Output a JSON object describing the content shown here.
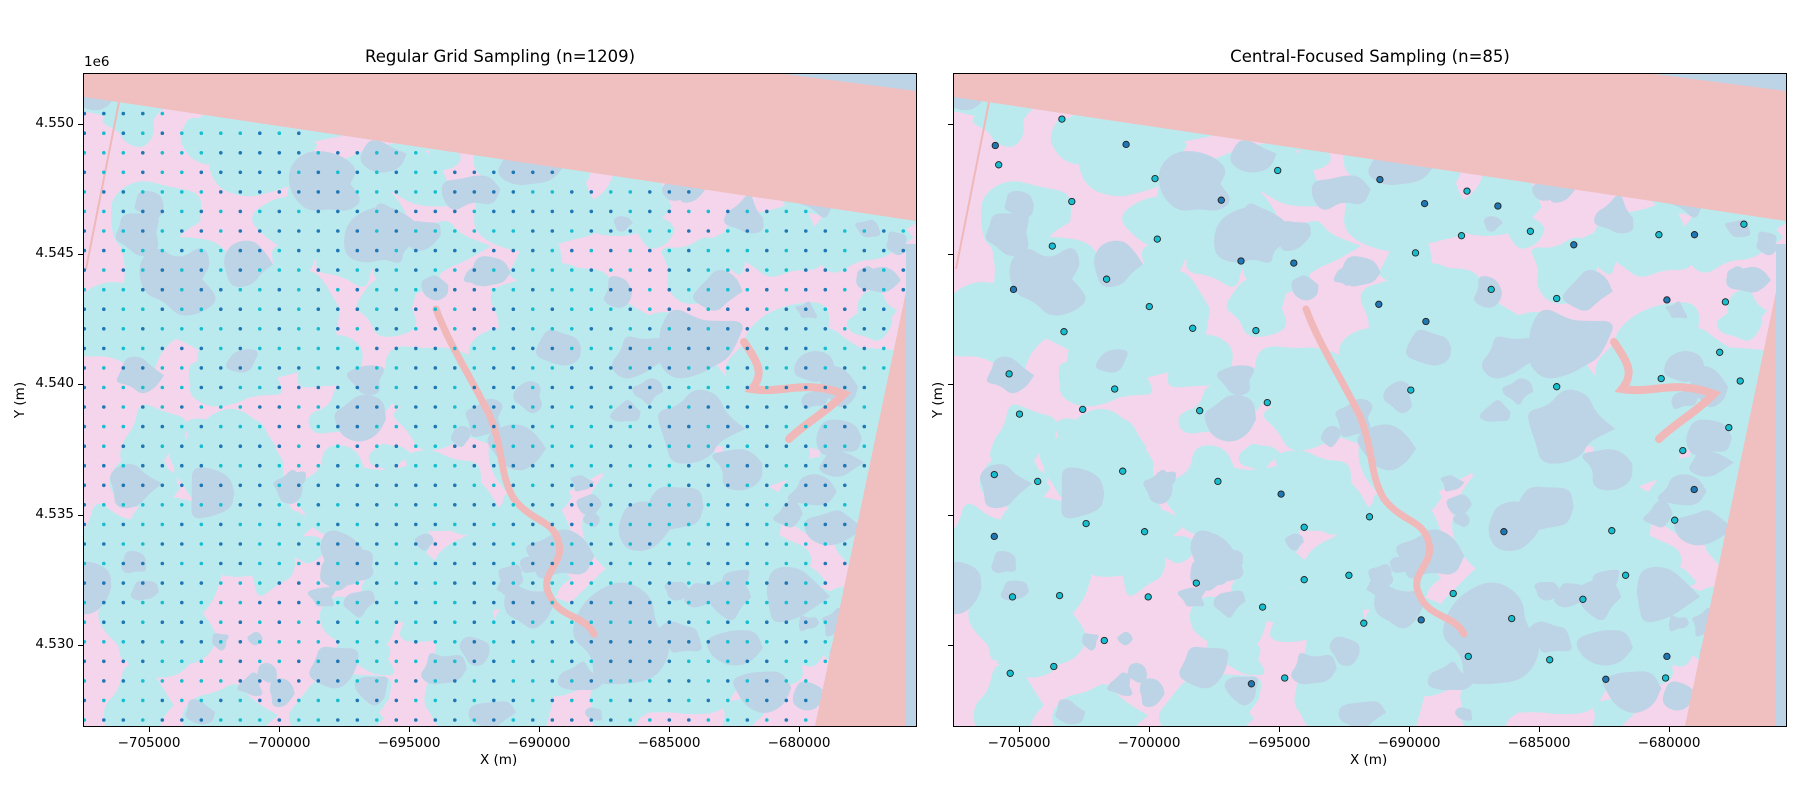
{
  "figure": {
    "colors": {
      "background_pink": "#f5d5ec",
      "cyan_class": "#bbeaee",
      "grey_blue_class": "#bdd4e6",
      "nodata_salmon": "#f0bfbf",
      "river_salmon": "#f0b8b8",
      "point_dark_blue": "#1f77b4",
      "point_teal": "#17becf",
      "point_edge": "#222222"
    }
  },
  "chart_data": [
    {
      "type": "scatter",
      "title": "Regular Grid Sampling (n=1209)",
      "xlabel": "X (m)",
      "ylabel": "Y (m)",
      "y_offset_label": "1e6",
      "xlim": [
        -707500,
        -675500
      ],
      "ylim": [
        4526900,
        4551900
      ],
      "xticks": [
        -705000,
        -700000,
        -695000,
        -690000,
        -685000,
        -680000
      ],
      "xtick_labels": [
        "−705000",
        "−700000",
        "−695000",
        "−690000",
        "−685000",
        "−680000"
      ],
      "yticks": [
        4530000,
        4535000,
        4540000,
        4545000,
        4550000
      ],
      "ytick_labels": [
        "4.530",
        "4.535",
        "4.540",
        "4.545",
        "4.550"
      ],
      "grid": false,
      "background": "land-cover raster (3 classes + no-data)",
      "sampling": {
        "n": 1209,
        "pattern": "regular grid",
        "x_start": -707490,
        "y_start": 4551130,
        "spacing_m": 750,
        "classes": [
          "dark_blue",
          "teal"
        ]
      }
    },
    {
      "type": "scatter",
      "title": "Central-Focused Sampling (n=85)",
      "xlabel": "X (m)",
      "ylabel": "Y (m)",
      "xlim": [
        -707500,
        -675500
      ],
      "ylim": [
        4526900,
        4551900
      ],
      "xticks": [
        -705000,
        -700000,
        -695000,
        -690000,
        -685000,
        -680000
      ],
      "xtick_labels": [
        "−705000",
        "−700000",
        "−695000",
        "−690000",
        "−685000",
        "−680000"
      ],
      "yticks": [
        4530000,
        4535000,
        4540000,
        4545000,
        4550000
      ],
      "ytick_labels": [
        "",
        "",
        "",
        "",
        ""
      ],
      "grid": false,
      "points": [
        {
          "x": -703350,
          "y": 4550170,
          "c": "teal"
        },
        {
          "x": -705910,
          "y": 4549160,
          "c": "dark"
        },
        {
          "x": -700880,
          "y": 4549200,
          "c": "dark"
        },
        {
          "x": -705780,
          "y": 4548420,
          "c": "teal"
        },
        {
          "x": -695050,
          "y": 4548200,
          "c": "teal"
        },
        {
          "x": -699770,
          "y": 4547890,
          "c": "teal"
        },
        {
          "x": -691120,
          "y": 4547850,
          "c": "dark"
        },
        {
          "x": -702970,
          "y": 4547010,
          "c": "teal"
        },
        {
          "x": -697220,
          "y": 4547060,
          "c": "dark"
        },
        {
          "x": -687770,
          "y": 4547410,
          "c": "teal"
        },
        {
          "x": -689400,
          "y": 4546930,
          "c": "dark"
        },
        {
          "x": -686580,
          "y": 4546840,
          "c": "dark"
        },
        {
          "x": -703720,
          "y": 4545300,
          "c": "teal"
        },
        {
          "x": -699680,
          "y": 4545570,
          "c": "teal"
        },
        {
          "x": -689750,
          "y": 4545040,
          "c": "teal"
        },
        {
          "x": -687980,
          "y": 4545700,
          "c": "teal"
        },
        {
          "x": -685330,
          "y": 4545870,
          "c": "teal"
        },
        {
          "x": -683660,
          "y": 4545350,
          "c": "dark"
        },
        {
          "x": -680390,
          "y": 4545740,
          "c": "teal"
        },
        {
          "x": -679020,
          "y": 4545740,
          "c": "dark"
        },
        {
          "x": -677120,
          "y": 4546140,
          "c": "teal"
        },
        {
          "x": -696460,
          "y": 4544730,
          "c": "dark"
        },
        {
          "x": -694430,
          "y": 4544650,
          "c": "dark"
        },
        {
          "x": -701630,
          "y": 4544030,
          "c": "teal"
        },
        {
          "x": -705210,
          "y": 4543640,
          "c": "dark"
        },
        {
          "x": -699990,
          "y": 4542980,
          "c": "teal"
        },
        {
          "x": -691160,
          "y": 4543070,
          "c": "dark"
        },
        {
          "x": -686840,
          "y": 4543640,
          "c": "teal"
        },
        {
          "x": -684320,
          "y": 4543290,
          "c": "teal"
        },
        {
          "x": -680080,
          "y": 4543240,
          "c": "dark"
        },
        {
          "x": -677830,
          "y": 4543160,
          "c": "teal"
        },
        {
          "x": -689350,
          "y": 4542410,
          "c": "dark"
        },
        {
          "x": -703270,
          "y": 4542020,
          "c": "teal"
        },
        {
          "x": -698320,
          "y": 4542150,
          "c": "teal"
        },
        {
          "x": -695890,
          "y": 4542060,
          "c": "teal"
        },
        {
          "x": -678050,
          "y": 4541230,
          "c": "teal"
        },
        {
          "x": -705380,
          "y": 4540400,
          "c": "teal"
        },
        {
          "x": -680300,
          "y": 4540220,
          "c": "teal"
        },
        {
          "x": -677260,
          "y": 4540130,
          "c": "teal"
        },
        {
          "x": -701320,
          "y": 4539820,
          "c": "teal"
        },
        {
          "x": -689930,
          "y": 4539780,
          "c": "teal"
        },
        {
          "x": -684320,
          "y": 4539910,
          "c": "teal"
        },
        {
          "x": -695450,
          "y": 4539300,
          "c": "teal"
        },
        {
          "x": -704980,
          "y": 4538860,
          "c": "teal"
        },
        {
          "x": -702550,
          "y": 4539040,
          "c": "teal"
        },
        {
          "x": -698050,
          "y": 4538990,
          "c": "teal"
        },
        {
          "x": -677700,
          "y": 4538340,
          "c": "teal"
        },
        {
          "x": -679470,
          "y": 4537460,
          "c": "teal"
        },
        {
          "x": -705950,
          "y": 4536540,
          "c": "teal"
        },
        {
          "x": -701010,
          "y": 4536670,
          "c": "teal"
        },
        {
          "x": -704280,
          "y": 4536280,
          "c": "teal"
        },
        {
          "x": -697350,
          "y": 4536280,
          "c": "teal"
        },
        {
          "x": -694920,
          "y": 4535790,
          "c": "dark"
        },
        {
          "x": -679030,
          "y": 4535970,
          "c": "dark"
        },
        {
          "x": -691520,
          "y": 4534920,
          "c": "teal"
        },
        {
          "x": -702420,
          "y": 4534660,
          "c": "teal"
        },
        {
          "x": -694030,
          "y": 4534520,
          "c": "teal"
        },
        {
          "x": -700170,
          "y": 4534350,
          "c": "teal"
        },
        {
          "x": -686350,
          "y": 4534350,
          "c": "dark"
        },
        {
          "x": -705950,
          "y": 4534170,
          "c": "dark"
        },
        {
          "x": -682200,
          "y": 4534390,
          "c": "teal"
        },
        {
          "x": -679780,
          "y": 4534790,
          "c": "teal"
        },
        {
          "x": -681670,
          "y": 4532680,
          "c": "teal"
        },
        {
          "x": -692310,
          "y": 4532680,
          "c": "teal"
        },
        {
          "x": -694030,
          "y": 4532510,
          "c": "teal"
        },
        {
          "x": -698180,
          "y": 4532380,
          "c": "teal"
        },
        {
          "x": -683310,
          "y": 4531760,
          "c": "teal"
        },
        {
          "x": -705250,
          "y": 4531850,
          "c": "teal"
        },
        {
          "x": -703440,
          "y": 4531900,
          "c": "teal"
        },
        {
          "x": -700030,
          "y": 4531850,
          "c": "teal"
        },
        {
          "x": -688300,
          "y": 4531980,
          "c": "teal"
        },
        {
          "x": -695630,
          "y": 4531460,
          "c": "teal"
        },
        {
          "x": -691740,
          "y": 4530840,
          "c": "teal"
        },
        {
          "x": -689530,
          "y": 4530970,
          "c": "dark"
        },
        {
          "x": -686050,
          "y": 4531020,
          "c": "teal"
        },
        {
          "x": -701720,
          "y": 4530180,
          "c": "teal"
        },
        {
          "x": -687720,
          "y": 4529570,
          "c": "teal"
        },
        {
          "x": -684590,
          "y": 4529440,
          "c": "teal"
        },
        {
          "x": -680080,
          "y": 4529570,
          "c": "dark"
        },
        {
          "x": -703660,
          "y": 4529180,
          "c": "teal"
        },
        {
          "x": -705340,
          "y": 4528920,
          "c": "teal"
        },
        {
          "x": -694780,
          "y": 4528740,
          "c": "teal"
        },
        {
          "x": -682430,
          "y": 4528690,
          "c": "dark"
        },
        {
          "x": -680130,
          "y": 4528740,
          "c": "teal"
        },
        {
          "x": -696060,
          "y": 4528520,
          "c": "dark"
        }
      ]
    }
  ]
}
